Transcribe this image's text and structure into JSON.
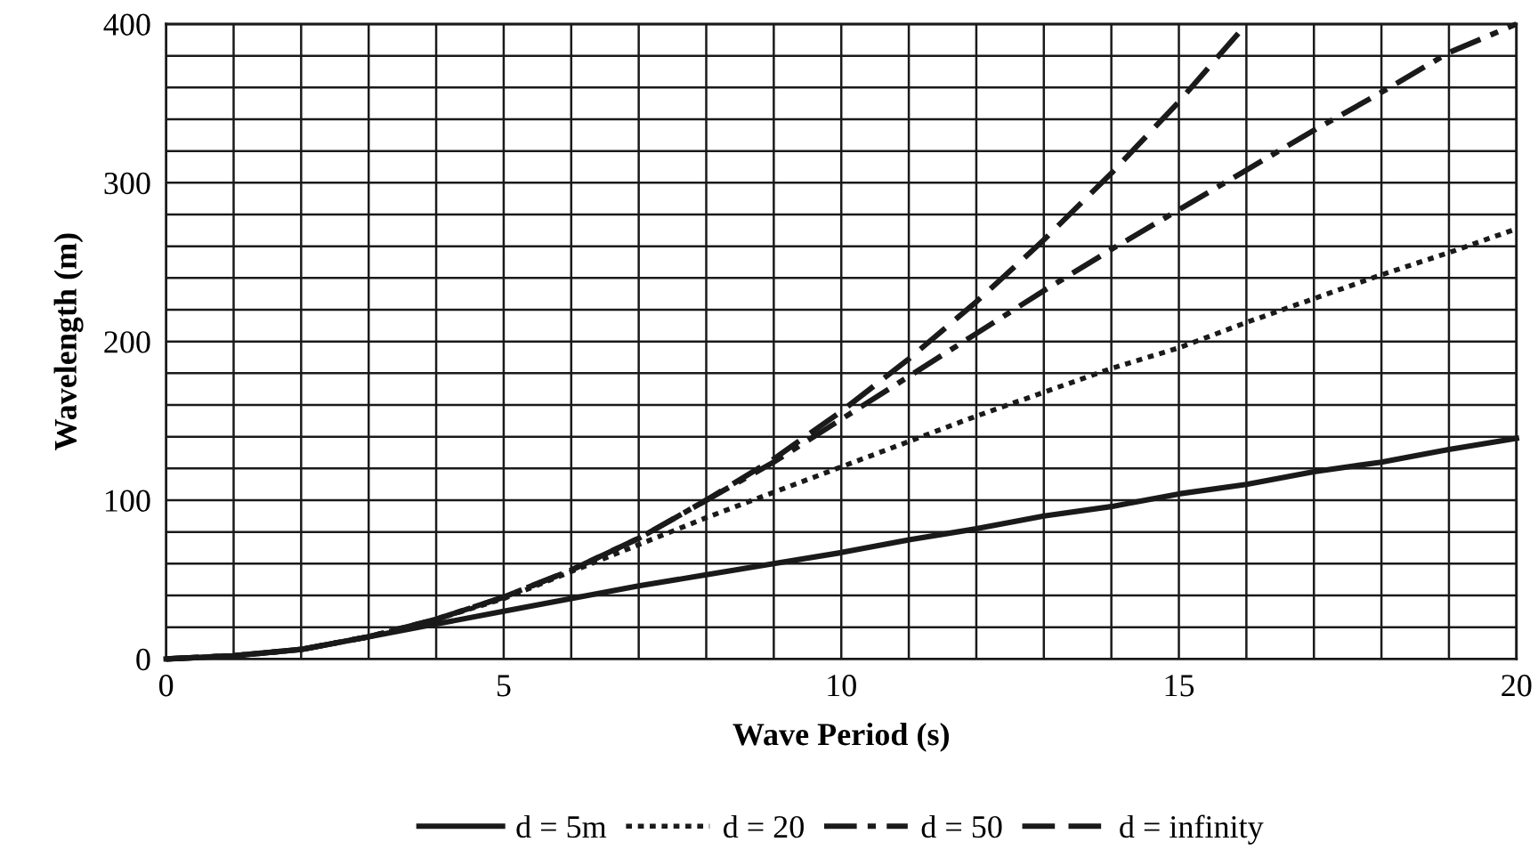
{
  "chart_data": {
    "type": "line",
    "xlabel": "Wave Period (s)",
    "ylabel": "Wavelength (m)",
    "x": [
      0,
      1,
      2,
      3,
      4,
      5,
      6,
      7,
      8,
      9,
      10,
      11,
      12,
      13,
      14,
      15,
      16,
      17,
      18,
      19,
      20
    ],
    "series": [
      {
        "name": "d = 5m",
        "color": "#1a1a1a",
        "line_style": "solid",
        "values": [
          0,
          2,
          6,
          14,
          22,
          30,
          38,
          46,
          53,
          60,
          67,
          75,
          82,
          90,
          96,
          104,
          110,
          118,
          124,
          132,
          139
        ]
      },
      {
        "name": "d = 20",
        "color": "#1a1a1a",
        "line_style": "dotted",
        "values": [
          0,
          2,
          6,
          14,
          25,
          38,
          55,
          72,
          89,
          105,
          121,
          137,
          153,
          168,
          183,
          196,
          212,
          227,
          242,
          256,
          271
        ]
      },
      {
        "name": "d = 50",
        "color": "#1a1a1a",
        "line_style": "dashdot",
        "values": [
          0,
          2,
          6,
          14,
          25,
          39,
          56,
          76,
          100,
          124,
          151,
          178,
          205,
          232,
          258,
          283,
          308,
          333,
          357,
          382,
          400
        ]
      },
      {
        "name": "d = infinity",
        "color": "#1a1a1a",
        "line_style": "dashed",
        "x": [
          0,
          1,
          2,
          3,
          4,
          5,
          6,
          7,
          8,
          9,
          10,
          11,
          12,
          13,
          14,
          15,
          16
        ],
        "values": [
          0,
          2,
          6,
          14,
          25,
          39,
          56,
          76,
          100,
          126,
          156,
          189,
          225,
          264,
          306,
          351,
          400
        ]
      }
    ],
    "xlim": [
      0,
      20
    ],
    "ylim": [
      0,
      400
    ],
    "xticks": [
      0,
      {
        "value": 1,
        "label": null
      },
      {
        "value": 2,
        "label": null
      },
      {
        "value": 3,
        "label": null
      },
      {
        "value": 4,
        "label": null
      },
      5,
      {
        "value": 6,
        "label": null
      },
      {
        "value": 7,
        "label": null
      },
      {
        "value": 8,
        "label": null
      },
      {
        "value": 9,
        "label": null
      },
      10,
      {
        "value": 11,
        "label": null
      },
      {
        "value": 12,
        "label": null
      },
      {
        "value": 13,
        "label": null
      },
      {
        "value": 14,
        "label": null
      },
      15,
      {
        "value": 16,
        "label": null
      },
      {
        "value": 17,
        "label": null
      },
      {
        "value": 18,
        "label": null
      },
      {
        "value": 19,
        "label": null
      },
      20
    ],
    "yticks": [
      0,
      {
        "value": 20,
        "label": null
      },
      {
        "value": 40,
        "label": null
      },
      {
        "value": 60,
        "label": null
      },
      {
        "value": 80,
        "label": null
      },
      100,
      {
        "value": 120,
        "label": null
      },
      {
        "value": 140,
        "label": null
      },
      {
        "value": 160,
        "label": null
      },
      {
        "value": 180,
        "label": null
      },
      200,
      {
        "value": 220,
        "label": null
      },
      {
        "value": 240,
        "label": null
      },
      {
        "value": 260,
        "label": null
      },
      {
        "value": 280,
        "label": null
      },
      300,
      {
        "value": 320,
        "label": null
      },
      {
        "value": 340,
        "label": null
      },
      {
        "value": 360,
        "label": null
      },
      {
        "value": 380,
        "label": null
      },
      400
    ],
    "grid": true,
    "legend": "bottom",
    "marker": "none"
  }
}
